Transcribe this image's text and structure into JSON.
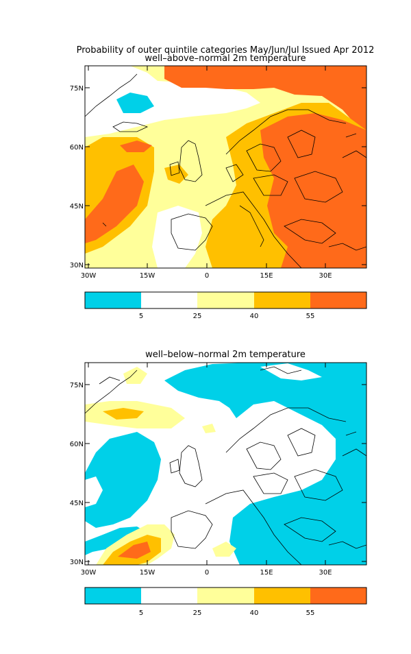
{
  "title": "Probability of outer quintile categories May/Jun/Jul Issued Apr 2012",
  "colors": {
    "cyan": "#00d0e8",
    "white": "#ffffff",
    "light_yellow": "#ffff9a",
    "gold": "#ffc000",
    "orange": "#ff6a1a",
    "coast": "#000000"
  },
  "colorbar": {
    "labels": [
      "5",
      "25",
      "40",
      "55"
    ],
    "bins": [
      "cyan",
      "white",
      "light_yellow",
      "gold",
      "orange"
    ]
  },
  "axes": {
    "lon_labels": [
      "30W",
      "15W",
      "0",
      "15E",
      "30E"
    ],
    "lat_labels": [
      "75N",
      "60N",
      "45N",
      "30N"
    ]
  },
  "panels": [
    {
      "subtitle": "well–above–normal 2m temperature",
      "background_category": "light_yellow"
    },
    {
      "subtitle": "well–below–normal 2m temperature",
      "background_category": "white"
    }
  ]
}
